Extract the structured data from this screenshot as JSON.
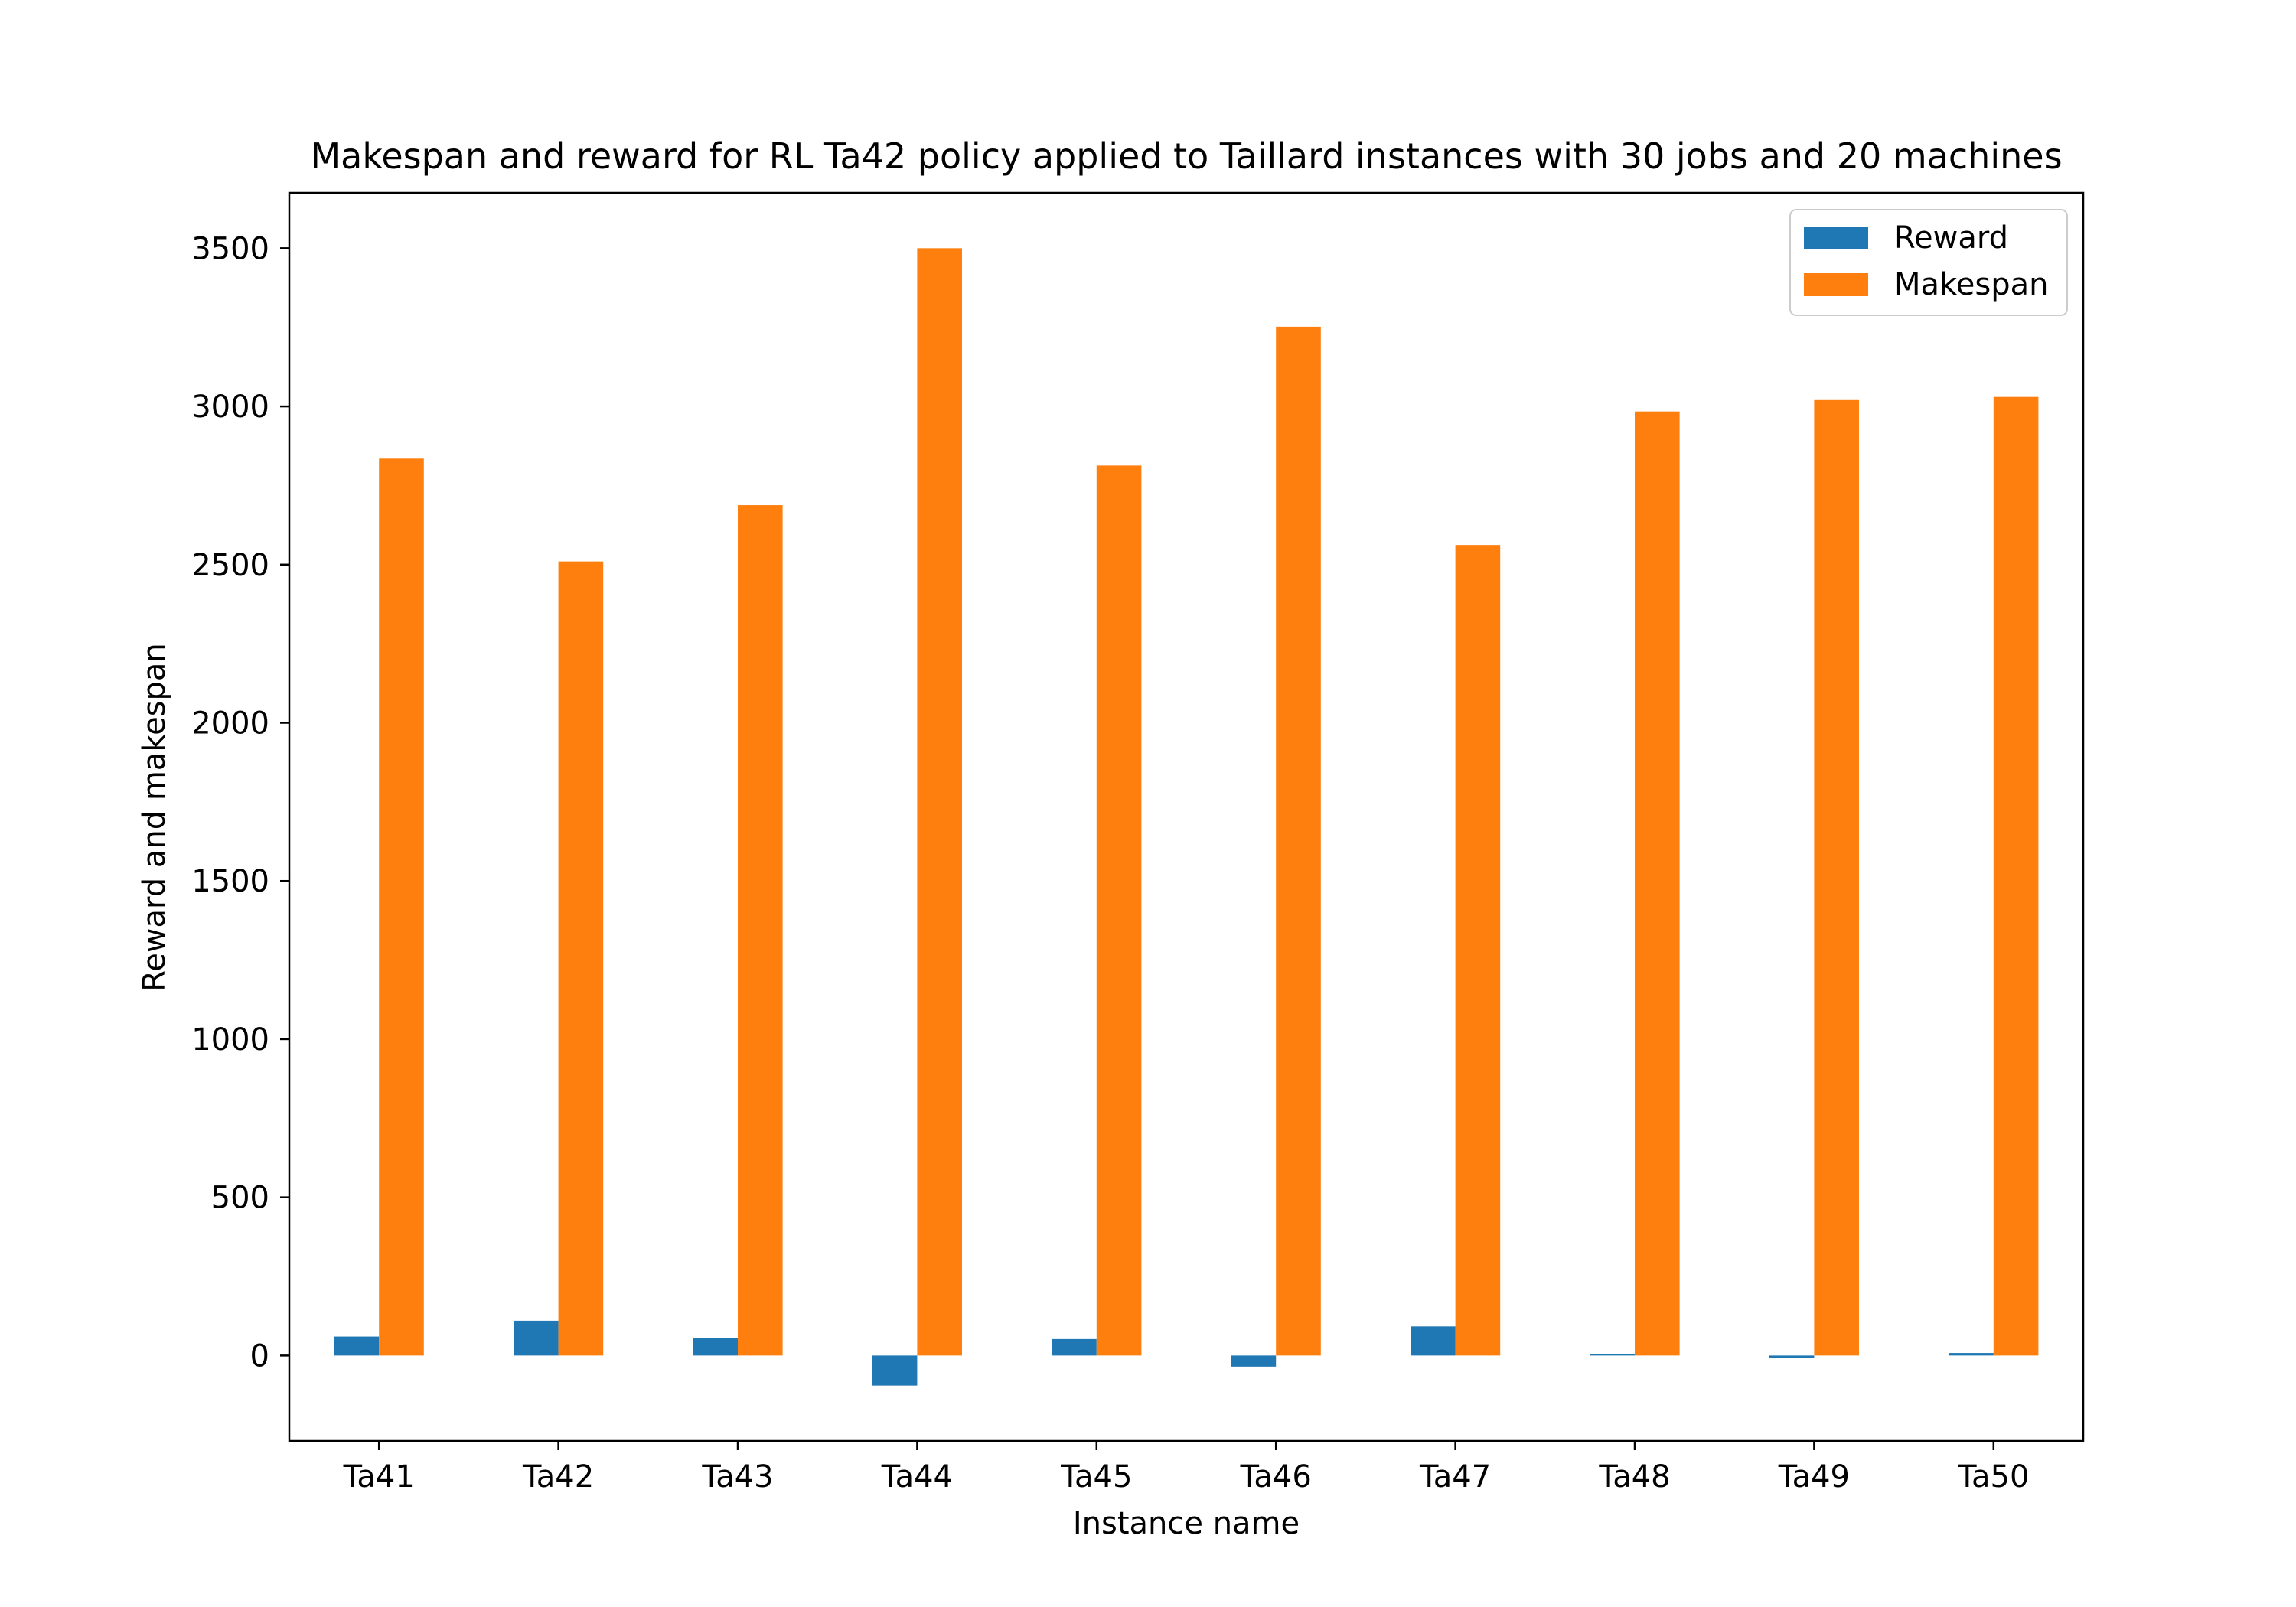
{
  "chart_data": {
    "type": "bar",
    "title": "Makespan and reward for RL Ta42 policy applied to Taillard instances with 30 jobs and 20 machines",
    "xlabel": "Instance name",
    "ylabel": "Reward and makespan",
    "categories": [
      "Ta41",
      "Ta42",
      "Ta43",
      "Ta44",
      "Ta45",
      "Ta46",
      "Ta47",
      "Ta48",
      "Ta49",
      "Ta50"
    ],
    "series": [
      {
        "name": "Reward",
        "color": "#1f77b4",
        "values": [
          60,
          110,
          55,
          -95,
          52,
          -35,
          92,
          5,
          -8,
          8
        ]
      },
      {
        "name": "Makespan",
        "color": "#ff7f0e",
        "values": [
          2835,
          2510,
          2688,
          3500,
          2813,
          3252,
          2562,
          2984,
          3020,
          3030
        ]
      }
    ],
    "ylim": [
      -270,
      3675
    ],
    "yticks": [
      0,
      500,
      1000,
      1500,
      2000,
      2500,
      3000,
      3500
    ],
    "grid": false,
    "legend_position": "top-right"
  }
}
